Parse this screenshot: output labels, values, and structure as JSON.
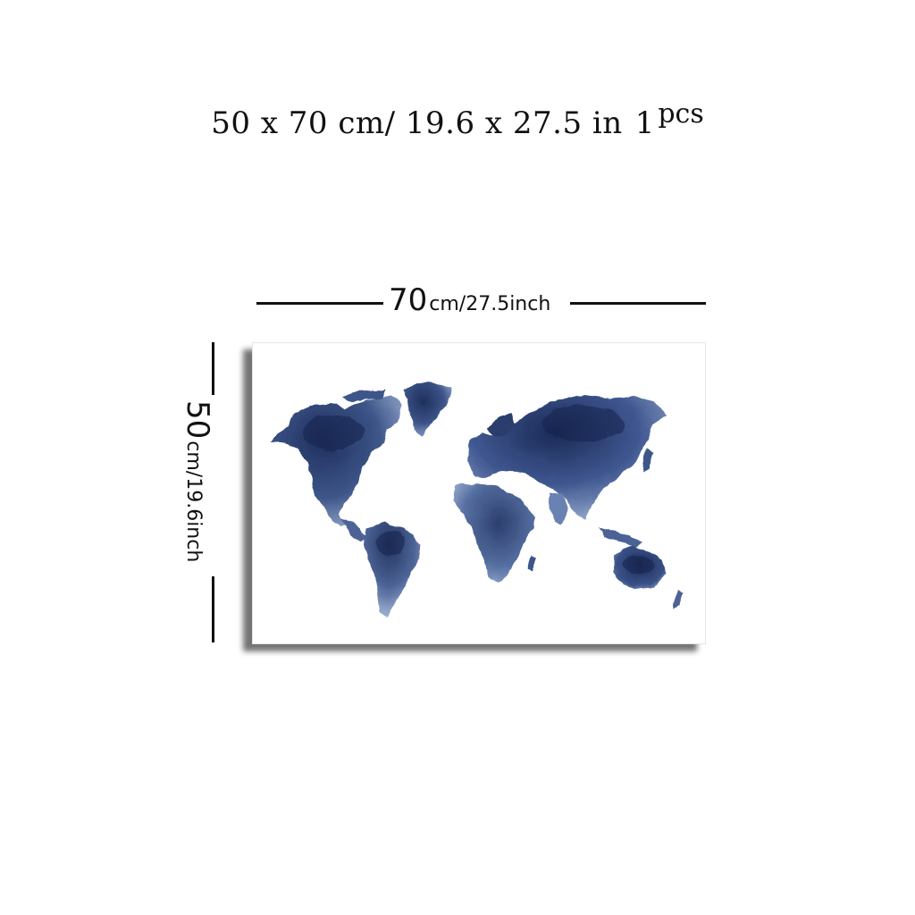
{
  "header": {
    "size_text": "50 x 70 cm/ 19.6 x 27.5 in",
    "quantity": "1",
    "quantity_unit": "pcs"
  },
  "width_dimension": {
    "value": "70",
    "unit_text": "cm/27.5inch"
  },
  "height_dimension": {
    "value": "50",
    "unit_text": "cm/19.6inch"
  },
  "artwork": {
    "subject": "World map",
    "style": "watercolor",
    "colors": {
      "dark": "#1f2f5c",
      "mid": "#3d5589",
      "light": "#8fa3c8",
      "background": "#ffffff"
    }
  }
}
